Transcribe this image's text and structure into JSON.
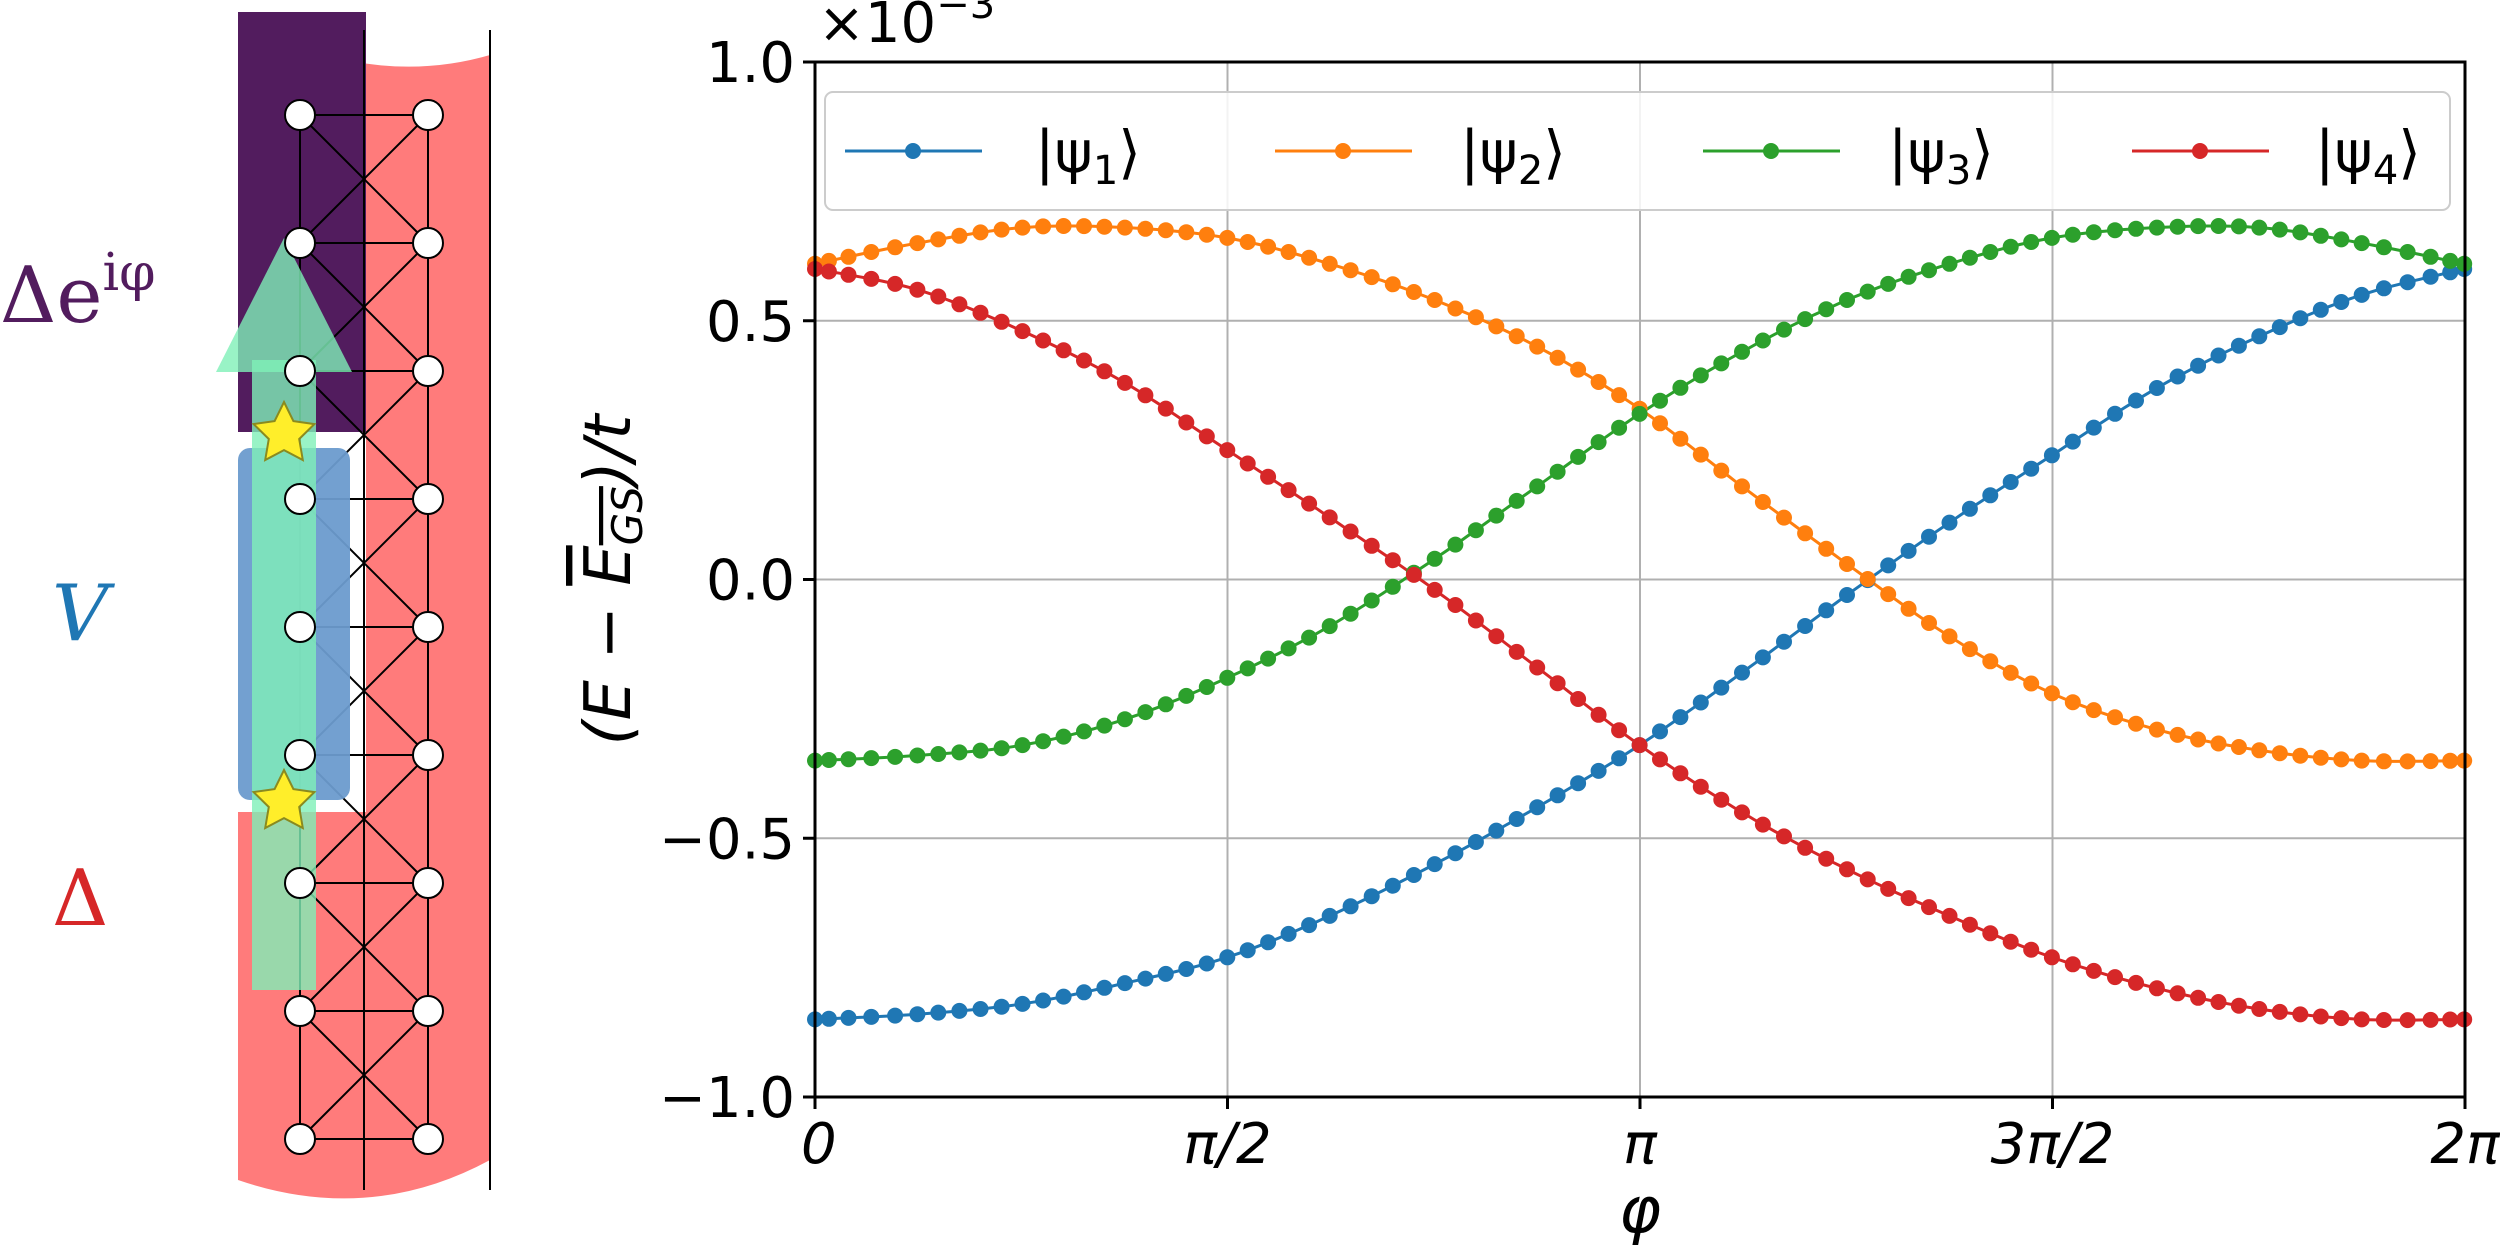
{
  "colors": {
    "psi1": "#1f77b4",
    "psi2": "#ff7f0e",
    "psi3": "#2ca02c",
    "psi4": "#d62728",
    "purple_region": "#521c5e",
    "pink_region": "#ff7b7b",
    "blue_region": "#6c9bcd",
    "green_arrow": "#7ff0b8",
    "star": "#ffee2a"
  },
  "schematic": {
    "label_top": "Δe",
    "label_top_exp": "iφ",
    "label_mid": "V",
    "label_bottom": "Δ",
    "site_count": 9
  },
  "chart_data": {
    "type": "line",
    "xlabel": "φ",
    "ylabel_parts": [
      "(E − ",
      "E",
      "GS",
      ")/t"
    ],
    "scale_prefix": "×10",
    "scale_exp": "−3",
    "xlim": [
      0,
      6.283185307
    ],
    "ylim": [
      -1.0,
      1.0
    ],
    "grid": true,
    "legend_position": "top",
    "xticks": [
      {
        "value": 0,
        "label": "0"
      },
      {
        "value": 1.5707963,
        "label": "π/2"
      },
      {
        "value": 3.1415927,
        "label": "π"
      },
      {
        "value": 4.712389,
        "label": "3π/2"
      },
      {
        "value": 6.2831853,
        "label": "2π"
      }
    ],
    "yticks": [
      {
        "value": -1.0,
        "label": "−1.0"
      },
      {
        "value": -0.5,
        "label": "−0.5"
      },
      {
        "value": 0.0,
        "label": "0.0"
      },
      {
        "value": 0.5,
        "label": "0.5"
      },
      {
        "value": 1.0,
        "label": "1.0"
      }
    ],
    "series": [
      {
        "name": "|ψ1⟩",
        "label_base": "|ψ",
        "label_sub": "1",
        "label_end": "⟩",
        "color": "#1f77b4",
        "x": [
          0,
          0.39,
          0.79,
          1.18,
          1.57,
          1.96,
          2.36,
          2.75,
          3.14,
          3.53,
          3.93,
          4.32,
          4.71,
          5.11,
          5.5,
          5.89,
          6.28
        ],
        "y": [
          -0.85,
          -0.84,
          -0.82,
          -0.78,
          -0.73,
          -0.65,
          -0.55,
          -0.44,
          -0.32,
          -0.18,
          -0.03,
          0.11,
          0.24,
          0.37,
          0.47,
          0.55,
          0.6
        ]
      },
      {
        "name": "|ψ2⟩",
        "label_base": "|ψ",
        "label_sub": "2",
        "label_end": "⟩",
        "color": "#ff7f0e",
        "x": [
          0,
          0.39,
          0.79,
          1.18,
          1.57,
          1.96,
          2.36,
          2.75,
          3.14,
          3.53,
          3.93,
          4.32,
          4.71,
          5.11,
          5.5,
          5.89,
          6.28
        ],
        "y": [
          0.61,
          0.65,
          0.68,
          0.68,
          0.66,
          0.61,
          0.54,
          0.45,
          0.33,
          0.18,
          0.03,
          -0.11,
          -0.22,
          -0.29,
          -0.33,
          -0.35,
          -0.35
        ]
      },
      {
        "name": "|ψ3⟩",
        "label_base": "|ψ",
        "label_sub": "3",
        "label_end": "⟩",
        "color": "#2ca02c",
        "x": [
          0,
          0.39,
          0.79,
          1.18,
          1.57,
          1.96,
          2.36,
          2.75,
          3.14,
          3.53,
          3.93,
          4.32,
          4.71,
          5.11,
          5.5,
          5.89,
          6.28
        ],
        "y": [
          -0.35,
          -0.34,
          -0.32,
          -0.27,
          -0.19,
          -0.09,
          0.04,
          0.18,
          0.32,
          0.44,
          0.54,
          0.61,
          0.66,
          0.68,
          0.68,
          0.65,
          0.61
        ]
      },
      {
        "name": "|ψ4⟩",
        "label_base": "|ψ",
        "label_sub": "4",
        "label_end": "⟩",
        "color": "#d62728",
        "x": [
          0,
          0.39,
          0.79,
          1.18,
          1.57,
          1.96,
          2.36,
          2.75,
          3.14,
          3.53,
          3.93,
          4.32,
          4.71,
          5.11,
          5.5,
          5.89,
          6.28
        ],
        "y": [
          0.6,
          0.56,
          0.48,
          0.38,
          0.25,
          0.12,
          -0.02,
          -0.17,
          -0.32,
          -0.45,
          -0.56,
          -0.65,
          -0.73,
          -0.79,
          -0.83,
          -0.85,
          -0.85
        ]
      }
    ]
  }
}
